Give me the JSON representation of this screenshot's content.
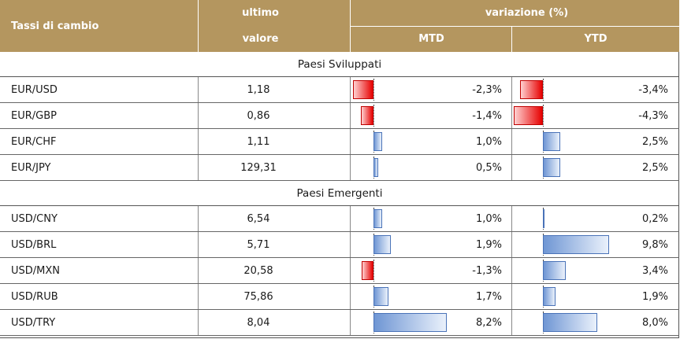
{
  "header": {
    "col_name": "Tassi di cambio",
    "col_last_line1": "ultimo",
    "col_last_line2": "valore",
    "col_change": "variazione (%)",
    "col_mtd": "MTD",
    "col_ytd": "YTD"
  },
  "colors": {
    "header_bg": "#b4965f",
    "negative_bar": "#e60000",
    "positive_bar": "#6f96d4"
  },
  "sections": [
    {
      "title": "Paesi Sviluppati",
      "rows": [
        {
          "name": "EUR/USD",
          "last": "1,18",
          "mtd": "-2,3%",
          "mtd_value": -2.3,
          "ytd": "-3,4%",
          "ytd_value": -3.4
        },
        {
          "name": "EUR/GBP",
          "last": "0,86",
          "mtd": "-1,4%",
          "mtd_value": -1.4,
          "ytd": "-4,3%",
          "ytd_value": -4.3
        },
        {
          "name": "EUR/CHF",
          "last": "1,11",
          "mtd": "1,0%",
          "mtd_value": 1.0,
          "ytd": "2,5%",
          "ytd_value": 2.5
        },
        {
          "name": "EUR/JPY",
          "last": "129,31",
          "mtd": "0,5%",
          "mtd_value": 0.5,
          "ytd": "2,5%",
          "ytd_value": 2.5
        }
      ]
    },
    {
      "title": "Paesi Emergenti",
      "rows": [
        {
          "name": "USD/CNY",
          "last": "6,54",
          "mtd": "1,0%",
          "mtd_value": 1.0,
          "ytd": "0,2%",
          "ytd_value": 0.2
        },
        {
          "name": "USD/BRL",
          "last": "5,71",
          "mtd": "1,9%",
          "mtd_value": 1.9,
          "ytd": "9,8%",
          "ytd_value": 9.8
        },
        {
          "name": "USD/MXN",
          "last": "20,58",
          "mtd": "-1,3%",
          "mtd_value": -1.3,
          "ytd": "3,4%",
          "ytd_value": 3.4
        },
        {
          "name": "USD/RUB",
          "last": "75,86",
          "mtd": "1,7%",
          "mtd_value": 1.7,
          "ytd": "1,9%",
          "ytd_value": 1.9
        },
        {
          "name": "USD/TRY",
          "last": "8,04",
          "mtd": "8,2%",
          "mtd_value": 8.2,
          "ytd": "8,0%",
          "ytd_value": 8.0
        }
      ]
    }
  ]
}
